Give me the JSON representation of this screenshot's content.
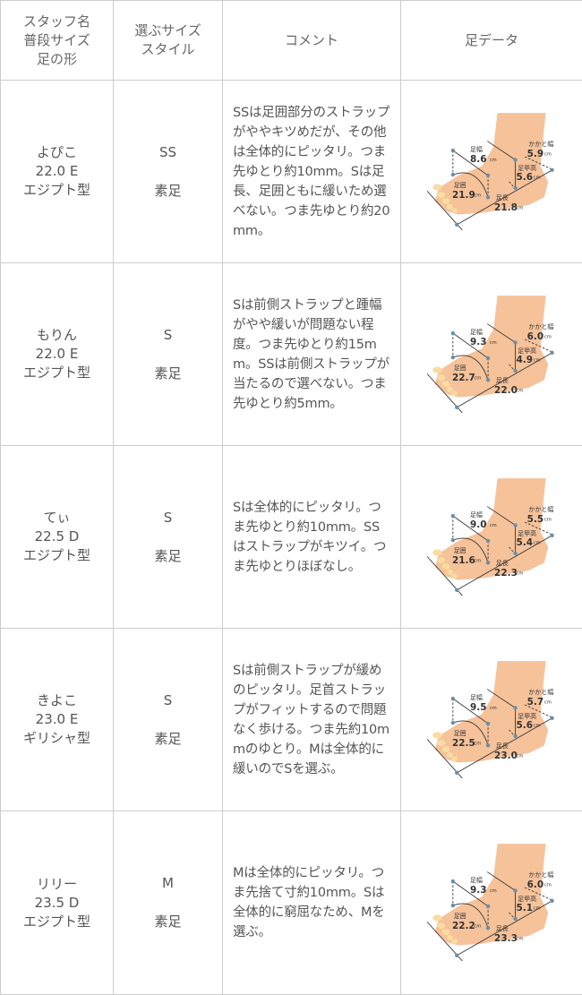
{
  "header": {
    "col1": [
      "スタッフ名",
      "普段サイズ",
      "足の形"
    ],
    "col2": [
      "選ぶサイズ",
      "スタイル"
    ],
    "col3": "コメント",
    "col4": "足データ"
  },
  "foot_labels": {
    "width": "足幅",
    "heel_width": "かかと幅",
    "instep": "足甲高",
    "girth": "足囲",
    "length": "足長",
    "unit": "cm"
  },
  "colors": {
    "border": "#cccccc",
    "text": "#555555",
    "skin": "#f6c29a"
  },
  "rows": [
    {
      "name": "よぴこ",
      "usual_size": "22.0 E",
      "shape": "エジプト型",
      "chosen_size": "SS",
      "style": "素足",
      "comment": "SSは足囲部分のストラップがややキツめだが、その他は全体的にピッタリ。つま先ゆとり約10mm。Sは足長、足囲ともに緩いため選べない。つま先ゆとり約20mm。",
      "foot": {
        "width": "8.6",
        "heel_width": "5.9",
        "instep": "5.6",
        "girth": "21.9",
        "length": "21.8"
      }
    },
    {
      "name": "もりん",
      "usual_size": "22.0 E",
      "shape": "エジプト型",
      "chosen_size": "S",
      "style": "素足",
      "comment": "Sは前側ストラップと踵幅がやや緩いが問題ない程度。つま先ゆとり約15mm。SSは前側ストラップが当たるので選べない。つま先ゆとり約5mm。",
      "foot": {
        "width": "9.3",
        "heel_width": "6.0",
        "instep": "4.9",
        "girth": "22.7",
        "length": "22.0"
      }
    },
    {
      "name": "てぃ",
      "usual_size": "22.5 D",
      "shape": "エジプト型",
      "chosen_size": "S",
      "style": "素足",
      "comment": "Sは全体的にピッタリ。つま先ゆとり約10mm。SSはストラップがキツイ。つま先ゆとりほぼなし。",
      "foot": {
        "width": "9.0",
        "heel_width": "5.5",
        "instep": "5.4",
        "girth": "21.6",
        "length": "22.3"
      }
    },
    {
      "name": "きよこ",
      "usual_size": "23.0 E",
      "shape": "ギリシャ型",
      "chosen_size": "S",
      "style": "素足",
      "comment": "Sは前側ストラップが緩めのピッタリ。足首ストラップがフィットするので問題なく歩ける。つま先約10mmのゆとり。Mは全体的に緩いのでSを選ぶ。",
      "foot": {
        "width": "9.5",
        "heel_width": "5.7",
        "instep": "5.6",
        "girth": "22.5",
        "length": "23.0"
      }
    },
    {
      "name": "リリー",
      "usual_size": "23.5 D",
      "shape": "エジプト型",
      "chosen_size": "M",
      "style": "素足",
      "comment": "Mは全体的にピッタリ。つま先捨て寸約10mm。Sは全体的に窮屈なため、Mを選ぶ。",
      "foot": {
        "width": "9.3",
        "heel_width": "6.0",
        "instep": "5.1",
        "girth": "22.2",
        "length": "23.3"
      }
    }
  ]
}
